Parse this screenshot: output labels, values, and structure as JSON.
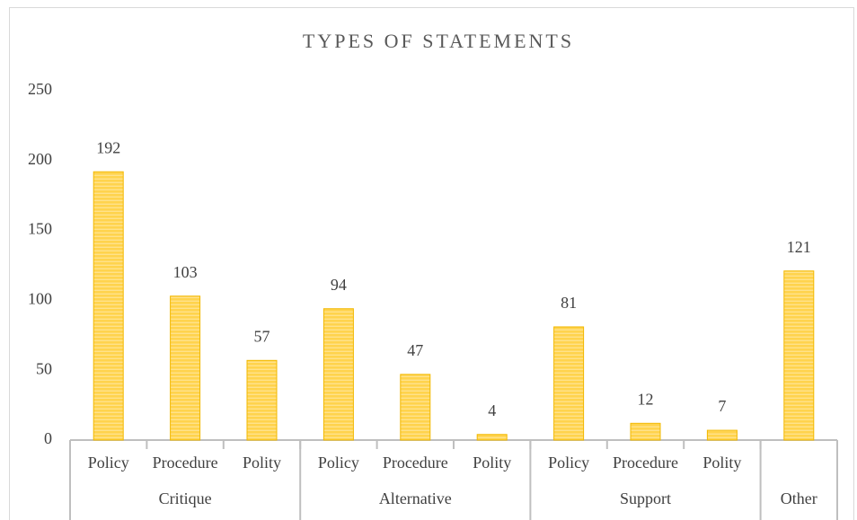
{
  "chart_data": {
    "type": "bar",
    "title": "TYPES OF STATEMENTS",
    "categories": [
      "Policy",
      "Procedure",
      "Polity",
      "Policy",
      "Procedure",
      "Polity",
      "Policy",
      "Procedure",
      "Polity",
      null
    ],
    "groups": [
      {
        "label": "Critique",
        "size": 3
      },
      {
        "label": "Alternative",
        "size": 3
      },
      {
        "label": "Support",
        "size": 3
      },
      {
        "label": "Other",
        "size": 1
      }
    ],
    "values": [
      192,
      103,
      57,
      94,
      47,
      4,
      81,
      12,
      7,
      121
    ],
    "color": "#ffd34d",
    "ylim": [
      0,
      250
    ],
    "yticks": [
      0,
      50,
      100,
      150,
      200,
      250
    ],
    "grid": false
  }
}
